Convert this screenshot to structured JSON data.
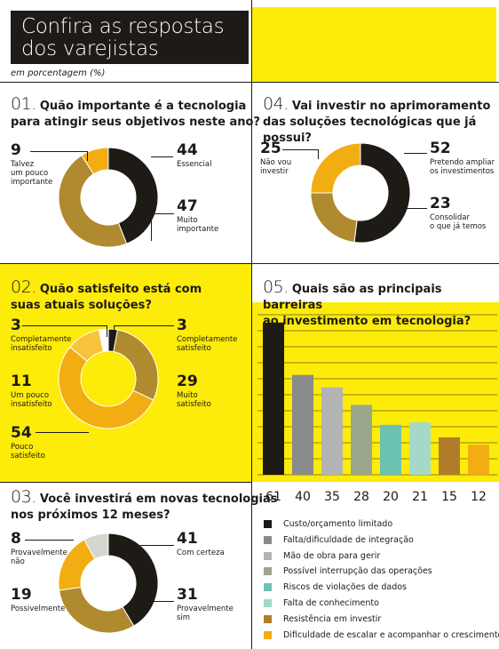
{
  "header": {
    "title_line1": "Confira as respostas",
    "title_line2": "dos varejistas",
    "subtitle": "em porcentagem (%)"
  },
  "colors": {
    "yellow": "#fdeb0a",
    "black": "#1e1a16",
    "gold": "#b08a2e",
    "orange": "#f2ad12"
  },
  "chart_data": [
    {
      "type": "pie",
      "question_number": "01.",
      "question_line1": "Quão importante é a tecnologia",
      "question_line2": "para atingir seus objetivos neste ano?",
      "labels": [
        "Essencial",
        "Muito importante",
        "Talvez um pouco importante"
      ],
      "values": [
        44,
        47,
        9
      ],
      "value_text": [
        "44",
        "47",
        "9"
      ],
      "label_lines": [
        [
          "Essencial"
        ],
        [
          "Muito",
          "importante"
        ],
        [
          "Talvez",
          "um pouco",
          "importante"
        ]
      ],
      "colors": [
        "#1e1a16",
        "#b08a2e",
        "#f2ad12"
      ]
    },
    {
      "type": "pie",
      "question_number": "02.",
      "question_line1": "Quão satisfeito está com",
      "question_line2": "suas atuais soluções?",
      "labels": [
        "Completamente satisfeito",
        "Muito satisfeito",
        "Pouco satisfeito",
        "Um pouco insatisfeito",
        "Completamente insatisfeito"
      ],
      "values": [
        3,
        29,
        54,
        11,
        3
      ],
      "value_text": [
        "3",
        "29",
        "54",
        "11",
        "3"
      ],
      "label_lines": [
        [
          "Completamente",
          "satisfeito"
        ],
        [
          "Muito",
          "satisfeito"
        ],
        [
          "Pouco",
          "satisfeito"
        ],
        [
          "Um pouco",
          "insatisfeito"
        ],
        [
          "Completamente",
          "insatisfeito"
        ]
      ],
      "colors": [
        "#1e1a16",
        "#b08a2e",
        "#f2ad12",
        "#f8c33a",
        "#ffffff"
      ]
    },
    {
      "type": "pie",
      "question_number": "03.",
      "question_line1": "Você investirá em novas tecnologias",
      "question_line2": "nos próximos 12 meses?",
      "labels": [
        "Com certeza",
        "Provavelmente sim",
        "Possivelmente",
        "Provavelmente não"
      ],
      "values": [
        41,
        31,
        19,
        8
      ],
      "value_text": [
        "41",
        "31",
        "19",
        "8"
      ],
      "label_lines": [
        [
          "Com certeza"
        ],
        [
          "Provavelmente",
          "sim"
        ],
        [
          "Possivelmente"
        ],
        [
          "Provavelmente",
          "não"
        ]
      ],
      "colors": [
        "#1e1a16",
        "#b08a2e",
        "#f2ad12",
        "#d6d6d0"
      ]
    },
    {
      "type": "pie",
      "question_number": "04.",
      "question_line1": "Vai investir no aprimoramento",
      "question_line2": "das soluções tecnológicas que já possui?",
      "labels": [
        "Pretendo ampliar os investimentos",
        "Consolidar o que já temos",
        "Não vou investir"
      ],
      "values": [
        52,
        23,
        25
      ],
      "value_text": [
        "52",
        "23",
        "25"
      ],
      "label_lines": [
        [
          "Pretendo ampliar",
          "os investimentos"
        ],
        [
          "Consolidar",
          "o que já temos"
        ],
        [
          "Não vou",
          "investir"
        ]
      ],
      "colors": [
        "#1e1a16",
        "#b08a2e",
        "#f2ad12"
      ]
    },
    {
      "type": "bar",
      "question_number": "05.",
      "question_line1": "Quais são as principais barreiras",
      "question_line2": "ao investimento em tecnologia?",
      "categories": [
        "Custo/orçamento limitado",
        "Falta/dificuldade de integração",
        "Mão de obra para gerir",
        "Possível interrupção das operações",
        "Riscos de violações de dados",
        "Falta de conhecimento",
        "Resistência em investir",
        "Dificuldade de escalar e acompanhar o crescimento"
      ],
      "values": [
        61,
        40,
        35,
        28,
        20,
        21,
        15,
        12
      ],
      "value_text": [
        "61",
        "40",
        "35",
        "28",
        "20",
        "21",
        "15",
        "12"
      ],
      "colors": [
        "#1e1a16",
        "#8a8a8a",
        "#b4b4b4",
        "#9aa78a",
        "#6cc2b0",
        "#a4d9c8",
        "#b07c2a",
        "#f2ad12"
      ],
      "ylim": [
        0,
        62
      ],
      "grid": true
    }
  ]
}
